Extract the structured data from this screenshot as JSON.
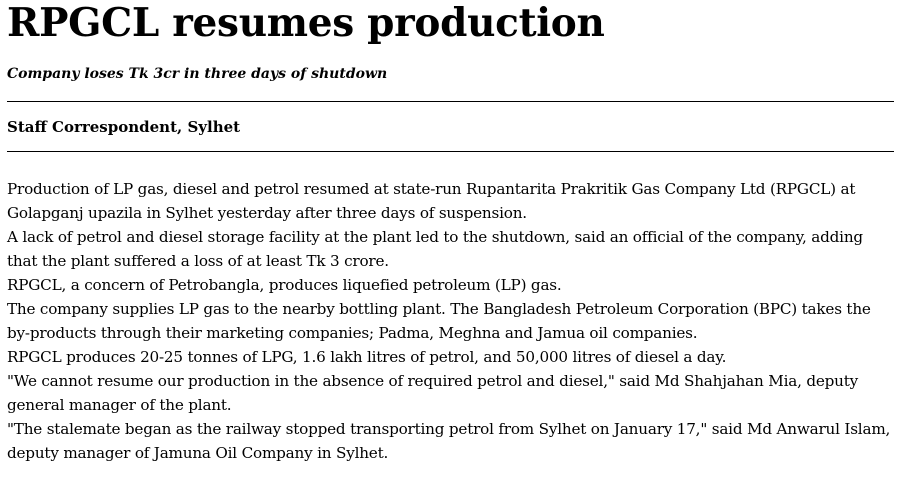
{
  "article": {
    "headline": "RPGCL resumes production",
    "subheadline": "Company loses Tk 3cr in three days of shutdown",
    "byline": "Staff Correspondent, Sylhet",
    "paragraphs": [
      "Production of LP gas, diesel and petrol resumed at state-run Rupantarita Prakritik Gas Company Ltd (RPGCL) at Golapganj upazila in Sylhet yesterday after three days of suspension.",
      "A lack of petrol and diesel storage facility at the plant led to the shutdown, said an official of the company, adding that the plant suffered a loss of at least Tk 3 crore.",
      "RPGCL, a concern of Petrobangla, produces liquefied petroleum (LP) gas.",
      "The company supplies LP gas to the nearby bottling plant. The Bangladesh Petroleum Corporation (BPC) takes the by-products through their marketing companies; Padma, Meghna and Jamua oil companies.",
      "RPGCL produces 20-25 tonnes of LPG, 1.6 lakh litres of petrol, and 50,000 litres of diesel a day.",
      "\"We cannot resume our production in the absence of required petrol and diesel,\" said Md Shahjahan Mia, deputy general manager of the plant.",
      "\"The stalemate began as the railway stopped transporting petrol from Sylhet on January 17,\" said Md Anwarul Islam, deputy manager of Jamuna Oil Company in Sylhet."
    ]
  }
}
